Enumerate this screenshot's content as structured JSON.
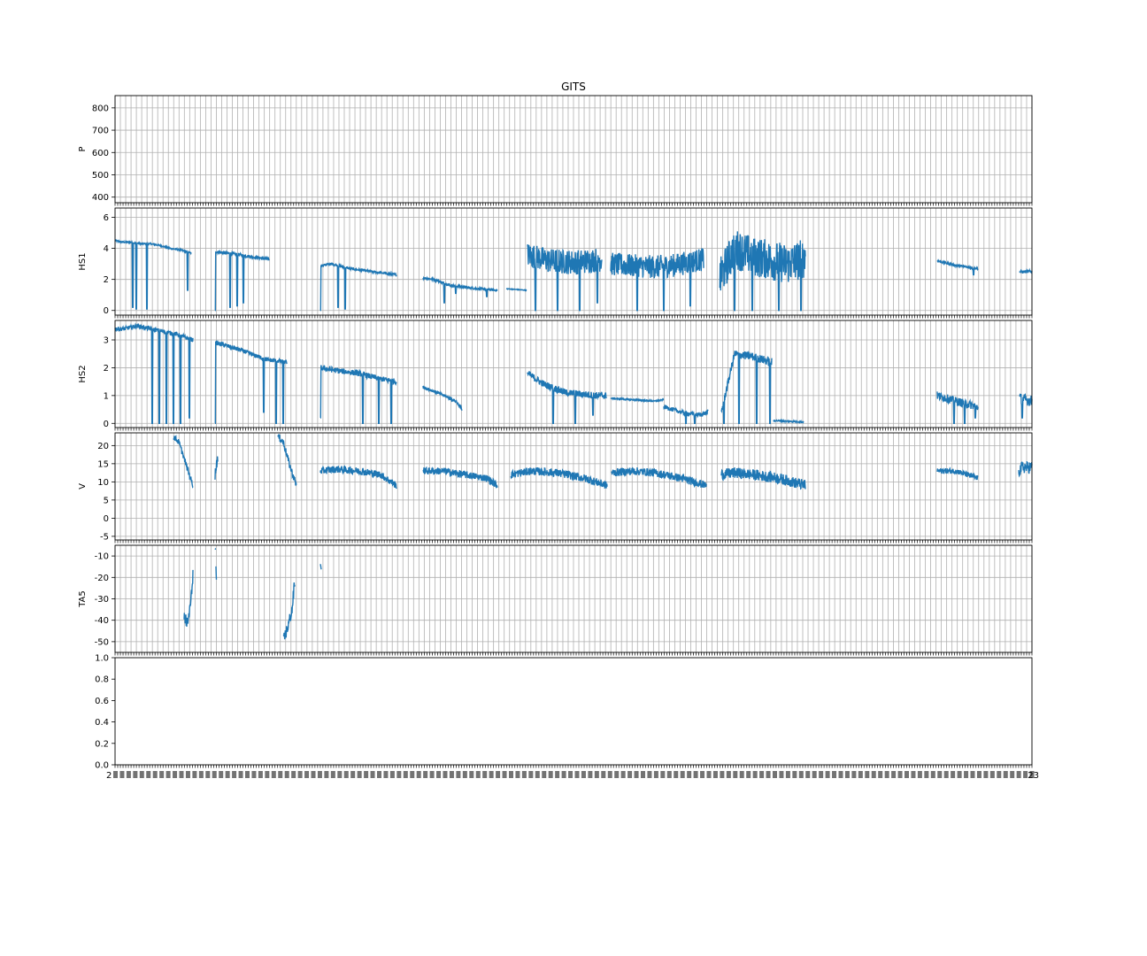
{
  "figure": {
    "title": "GITS",
    "x_tick_label_first": "2",
    "x_tick_label_last": "23"
  },
  "colors": {
    "series": "#1f77b4",
    "grid": "#b0b0b0",
    "axes": "#000000",
    "background": "#ffffff"
  },
  "chart_data": [
    {
      "type": "line",
      "ylabel": "P",
      "yticks": [
        400,
        500,
        600,
        700,
        800
      ],
      "ylim": [
        375,
        855
      ],
      "grid": true,
      "segments": []
    },
    {
      "type": "line",
      "ylabel": "HS1",
      "yticks": [
        0,
        2,
        4,
        6
      ],
      "ylim": [
        -0.3,
        6.6
      ],
      "grid": true,
      "segments": [
        {
          "x": [
            0,
            8,
            16,
            30,
            40,
            50,
            62,
            74,
            86
          ],
          "y": [
            4.5,
            4.4,
            4.4,
            4.3,
            4.3,
            4.2,
            4.0,
            3.9,
            3.7
          ],
          "noise": 0.1,
          "dips": [
            [
              20,
              0.2
            ],
            [
              24,
              0.1
            ],
            [
              36,
              0.1
            ],
            [
              82,
              1.3
            ]
          ]
        },
        {
          "x": [
            113,
            125,
            140,
            160,
            174
          ],
          "y": [
            3.8,
            3.7,
            3.6,
            3.4,
            3.3
          ],
          "noise": 0.2,
          "dips": [
            [
              113,
              0.0
            ],
            [
              130,
              0.2
            ],
            [
              138,
              0.3
            ],
            [
              145,
              0.5
            ]
          ]
        },
        {
          "x": [
            232,
            245,
            265,
            290,
            318
          ],
          "y": [
            2.9,
            3.0,
            2.7,
            2.5,
            2.3
          ],
          "noise": 0.15,
          "dips": [
            [
              232,
              0.0
            ],
            [
              252,
              0.2
            ],
            [
              260,
              0.1
            ]
          ]
        },
        {
          "x": [
            348,
            360,
            380,
            410,
            432
          ],
          "y": [
            2.1,
            2.0,
            1.6,
            1.4,
            1.3
          ],
          "noise": 0.15,
          "dips": [
            [
              372,
              0.5
            ],
            [
              385,
              1.1
            ],
            [
              420,
              0.9
            ]
          ]
        },
        {
          "x": [
            442,
            465
          ],
          "y": [
            1.4,
            1.3
          ],
          "noise": 0.05,
          "dips": []
        },
        {
          "x": [
            466,
            490,
            520,
            550
          ],
          "y": [
            3.6,
            3.2,
            3.1,
            3.3
          ],
          "noise": 1.6,
          "dips": [
            [
              475,
              0.0
            ],
            [
              500,
              0.0
            ],
            [
              525,
              0.0
            ],
            [
              545,
              0.5
            ]
          ]
        },
        {
          "x": [
            560,
            580,
            610,
            630,
            665
          ],
          "y": [
            3.0,
            2.9,
            2.8,
            2.9,
            3.3
          ],
          "noise": 1.5,
          "dips": [
            [
              590,
              0.0
            ],
            [
              620,
              0.0
            ],
            [
              650,
              0.3
            ],
            [
              670,
              0.0
            ]
          ]
        },
        {
          "x": [
            683,
            700,
            720,
            760,
            780
          ],
          "y": [
            2.0,
            4.0,
            3.5,
            3.0,
            3.4
          ],
          "noise": 2.6,
          "dips": [
            [
              700,
              0.0
            ],
            [
              720,
              0.0
            ],
            [
              750,
              0.0
            ],
            [
              775,
              0.0
            ]
          ]
        },
        {
          "x": [
            929,
            950,
            975
          ],
          "y": [
            3.2,
            2.9,
            2.7
          ],
          "noise": 0.15,
          "dips": [
            [
              970,
              2.3
            ]
          ]
        },
        {
          "x": [
            1022,
            1036
          ],
          "y": [
            2.5,
            2.5
          ],
          "noise": 0.2,
          "dips": []
        }
      ]
    },
    {
      "type": "line",
      "ylabel": "HS2",
      "yticks": [
        0,
        1,
        2,
        3
      ],
      "ylim": [
        -0.15,
        3.7
      ],
      "grid": true,
      "segments": [
        {
          "x": [
            0,
            10,
            25,
            40,
            55,
            70,
            88
          ],
          "y": [
            3.4,
            3.4,
            3.5,
            3.4,
            3.3,
            3.2,
            3.0
          ],
          "noise": 0.15,
          "dips": [
            [
              42,
              0.0
            ],
            [
              50,
              0.0
            ],
            [
              58,
              0.0
            ],
            [
              66,
              0.0
            ],
            [
              74,
              0.0
            ],
            [
              84,
              0.2
            ]
          ]
        },
        {
          "x": [
            113,
            125,
            145,
            170,
            194
          ],
          "y": [
            2.9,
            2.8,
            2.6,
            2.3,
            2.2
          ],
          "noise": 0.15,
          "dips": [
            [
              113,
              0.0
            ],
            [
              168,
              0.4
            ],
            [
              182,
              0.0
            ],
            [
              190,
              0.0
            ]
          ]
        },
        {
          "x": [
            232,
            250,
            275,
            300,
            318
          ],
          "y": [
            2.0,
            1.9,
            1.8,
            1.6,
            1.5
          ],
          "noise": 0.2,
          "dips": [
            [
              232,
              0.2
            ],
            [
              280,
              0.0
            ],
            [
              298,
              0.0
            ],
            [
              312,
              0.0
            ]
          ]
        },
        {
          "x": [
            348,
            365,
            385,
            392
          ],
          "y": [
            1.3,
            1.1,
            0.8,
            0.5
          ],
          "noise": 0.1,
          "dips": []
        },
        {
          "x": [
            466,
            485,
            510,
            545,
            555
          ],
          "y": [
            1.8,
            1.4,
            1.1,
            1.0,
            1.0
          ],
          "noise": 0.25,
          "dips": [
            [
              495,
              0.0
            ],
            [
              520,
              0.0
            ],
            [
              540,
              0.3
            ]
          ]
        },
        {
          "x": [
            560,
            585,
            610,
            620
          ],
          "y": [
            0.9,
            0.85,
            0.8,
            0.85
          ],
          "noise": 0.05,
          "dips": []
        },
        {
          "x": [
            620,
            640,
            660,
            670
          ],
          "y": [
            0.6,
            0.4,
            0.3,
            0.4
          ],
          "noise": 0.15,
          "dips": [
            [
              645,
              0.0
            ],
            [
              655,
              0.0
            ]
          ]
        },
        {
          "x": [
            685,
            700,
            720,
            742
          ],
          "y": [
            0.4,
            2.5,
            2.4,
            2.2
          ],
          "noise": 0.3,
          "dips": [
            [
              688,
              0.0
            ],
            [
              705,
              0.0
            ],
            [
              725,
              0.0
            ],
            [
              740,
              0.0
            ],
            [
              760,
              0.0
            ]
          ]
        },
        {
          "x": [
            744,
            778
          ],
          "y": [
            0.1,
            0.05
          ],
          "noise": 0.05,
          "dips": []
        },
        {
          "x": [
            929,
            950,
            975
          ],
          "y": [
            1.0,
            0.8,
            0.6
          ],
          "noise": 0.3,
          "dips": [
            [
              948,
              0.0
            ],
            [
              960,
              0.0
            ],
            [
              972,
              0.2
            ]
          ]
        },
        {
          "x": [
            1022,
            1036
          ],
          "y": [
            0.9,
            0.8
          ],
          "noise": 0.4,
          "dips": [
            [
              1025,
              0.2
            ]
          ]
        }
      ]
    },
    {
      "type": "line",
      "ylabel": "V",
      "yticks": [
        -5,
        0,
        5,
        10,
        15,
        20
      ],
      "ylim": [
        -6,
        23.5
      ],
      "grid": true,
      "segments": [
        {
          "x": [
            66,
            72,
            80,
            88
          ],
          "y": [
            22.5,
            21.0,
            15.0,
            9.0
          ],
          "noise": 1.5,
          "dips": []
        },
        {
          "x": [
            113,
            116
          ],
          "y": [
            12.0,
            17.0
          ],
          "noise": 3.0,
          "dips": []
        },
        {
          "x": [
            184,
            190,
            198,
            205
          ],
          "y": [
            22.5,
            21.0,
            14.0,
            9.0
          ],
          "noise": 2.0,
          "dips": []
        },
        {
          "x": [
            232,
            250,
            275,
            300,
            318
          ],
          "y": [
            13.0,
            13.5,
            13.0,
            12.0,
            9.0
          ],
          "noise": 2.0,
          "dips": []
        },
        {
          "x": [
            348,
            370,
            395,
            420,
            432
          ],
          "y": [
            13.0,
            13.0,
            12.0,
            11.0,
            9.0
          ],
          "noise": 2.0,
          "dips": []
        },
        {
          "x": [
            447,
            470,
            500,
            530,
            556
          ],
          "y": [
            12.0,
            13.0,
            12.5,
            11.0,
            9.0
          ],
          "noise": 2.2,
          "dips": []
        },
        {
          "x": [
            561,
            585,
            610,
            640,
            668
          ],
          "y": [
            12.5,
            13.0,
            12.5,
            11.0,
            9.0
          ],
          "noise": 2.2,
          "dips": []
        },
        {
          "x": [
            685,
            700,
            720,
            750,
            780
          ],
          "y": [
            12.0,
            12.5,
            12.0,
            11.0,
            9.0
          ],
          "noise": 3.0,
          "dips": []
        },
        {
          "x": [
            929,
            950,
            975
          ],
          "y": [
            13.0,
            13.0,
            11.0
          ],
          "noise": 1.5,
          "dips": []
        },
        {
          "x": [
            1021,
            1025,
            1036
          ],
          "y": [
            13.0,
            14.0,
            14.0
          ],
          "noise": 3.5,
          "dips": []
        }
      ]
    },
    {
      "type": "line",
      "ylabel": "TA5",
      "yticks": [
        -50,
        -40,
        -30,
        -20,
        -10
      ],
      "ylim": [
        -55,
        -5
      ],
      "grid": true,
      "segments": [
        {
          "x": [
            78,
            82,
            86,
            88
          ],
          "y": [
            -38.0,
            -42.0,
            -30.0,
            -18.0
          ],
          "noise": 6.0,
          "dips": []
        },
        {
          "x": [
            113,
            113.5
          ],
          "y": [
            -7.0,
            -7.0
          ],
          "noise": 1.0,
          "dips": []
        },
        {
          "x": [
            114,
            114.5
          ],
          "y": [
            -15.0,
            -22.0
          ],
          "noise": 2.0,
          "dips": []
        },
        {
          "x": [
            190,
            196,
            200,
            203
          ],
          "y": [
            -50.0,
            -42.0,
            -35.0,
            -22.0
          ],
          "noise": 6.0,
          "dips": []
        },
        {
          "x": [
            232,
            233
          ],
          "y": [
            -14.0,
            -16.0
          ],
          "noise": 1.0,
          "dips": []
        }
      ]
    },
    {
      "type": "line",
      "ylabel": "",
      "yticks": [
        0.0,
        0.2,
        0.4,
        0.6,
        0.8,
        1.0
      ],
      "ylim": [
        0.0,
        1.0
      ],
      "grid": false,
      "segments": []
    }
  ]
}
